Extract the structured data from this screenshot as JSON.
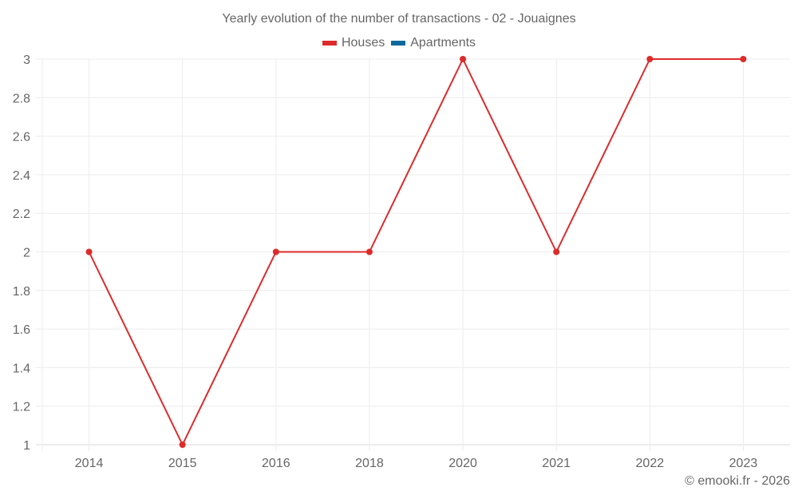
{
  "header": {
    "title": "Yearly evolution of the number of transactions - 02 - Jouaignes"
  },
  "legend": [
    {
      "label": "Houses",
      "color": "#dd2b2b"
    },
    {
      "label": "Apartments",
      "color": "#0f6a9c"
    }
  ],
  "footer": {
    "credit": "© emooki.fr - 2026"
  },
  "chart_data": {
    "type": "line",
    "title": "Yearly evolution of the number of transactions - 02 - Jouaignes",
    "xlabel": "",
    "ylabel": "",
    "categories": [
      "2014",
      "2015",
      "2016",
      "2018",
      "2020",
      "2021",
      "2022",
      "2023"
    ],
    "series": [
      {
        "name": "Houses",
        "color": "#dd2b2b",
        "values": [
          2,
          1,
          2,
          2,
          3,
          2,
          3,
          3
        ]
      },
      {
        "name": "Apartments",
        "color": "#0f6a9c",
        "values": []
      }
    ],
    "ylim": [
      1,
      3
    ],
    "yticks": [
      "1",
      "1.2",
      "1.4",
      "1.6",
      "1.8",
      "2",
      "2.2",
      "2.4",
      "2.6",
      "2.8",
      "3"
    ],
    "grid": true,
    "legend_position": "top"
  }
}
